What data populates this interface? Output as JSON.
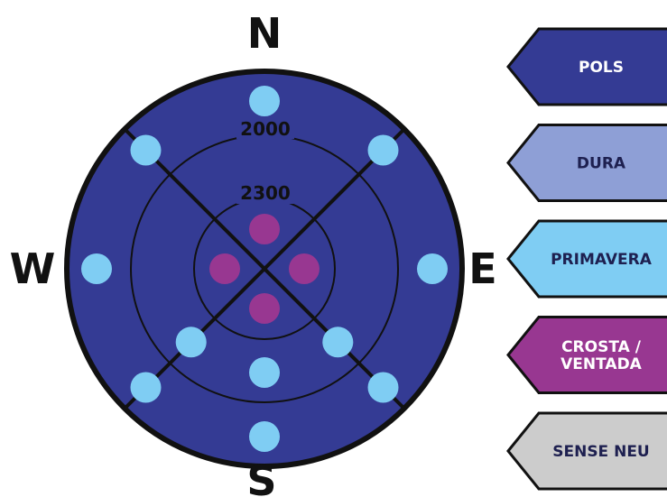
{
  "compass": {
    "north": "N",
    "south": "S",
    "east": "E",
    "west": "W"
  },
  "rings": {
    "outer_label": "2000",
    "inner_label": "2300"
  },
  "colors": {
    "pols": "#343b94",
    "dura": "#8e9fd6",
    "primavera": "#7fcdf3",
    "crosta_ventada": "#983791",
    "sense_neu": "#cccccc",
    "outline": "#111111"
  },
  "legend": [
    {
      "id": "pols",
      "lines": [
        "POLS"
      ],
      "color": "#343b94",
      "text_color": "#ffffff"
    },
    {
      "id": "dura",
      "lines": [
        "DURA"
      ],
      "color": "#8e9fd6",
      "text_color": "#1e2050"
    },
    {
      "id": "primavera",
      "lines": [
        "PRIMAVERA"
      ],
      "color": "#7fcdf3",
      "text_color": "#1e2050"
    },
    {
      "id": "crosta-ventada",
      "lines": [
        "CROSTA /",
        "VENTADA"
      ],
      "color": "#983791",
      "text_color": "#ffffff"
    },
    {
      "id": "sense-neu",
      "lines": [
        "SENSE NEU"
      ],
      "color": "#cccccc",
      "text_color": "#1e2050"
    }
  ],
  "snow_condition_markers": {
    "above_2000": {
      "N": "primavera",
      "NE": "primavera",
      "E": "primavera",
      "SE": "primavera",
      "S": "primavera",
      "SW": "primavera",
      "W": "primavera",
      "NW": "primavera"
    },
    "between_2000_2300": {
      "S": "primavera",
      "SW": "primavera",
      "SE": "primavera"
    },
    "above_2300": {
      "N": "crosta-ventada",
      "E": "crosta-ventada",
      "S": "crosta-ventada",
      "W": "crosta-ventada"
    }
  }
}
